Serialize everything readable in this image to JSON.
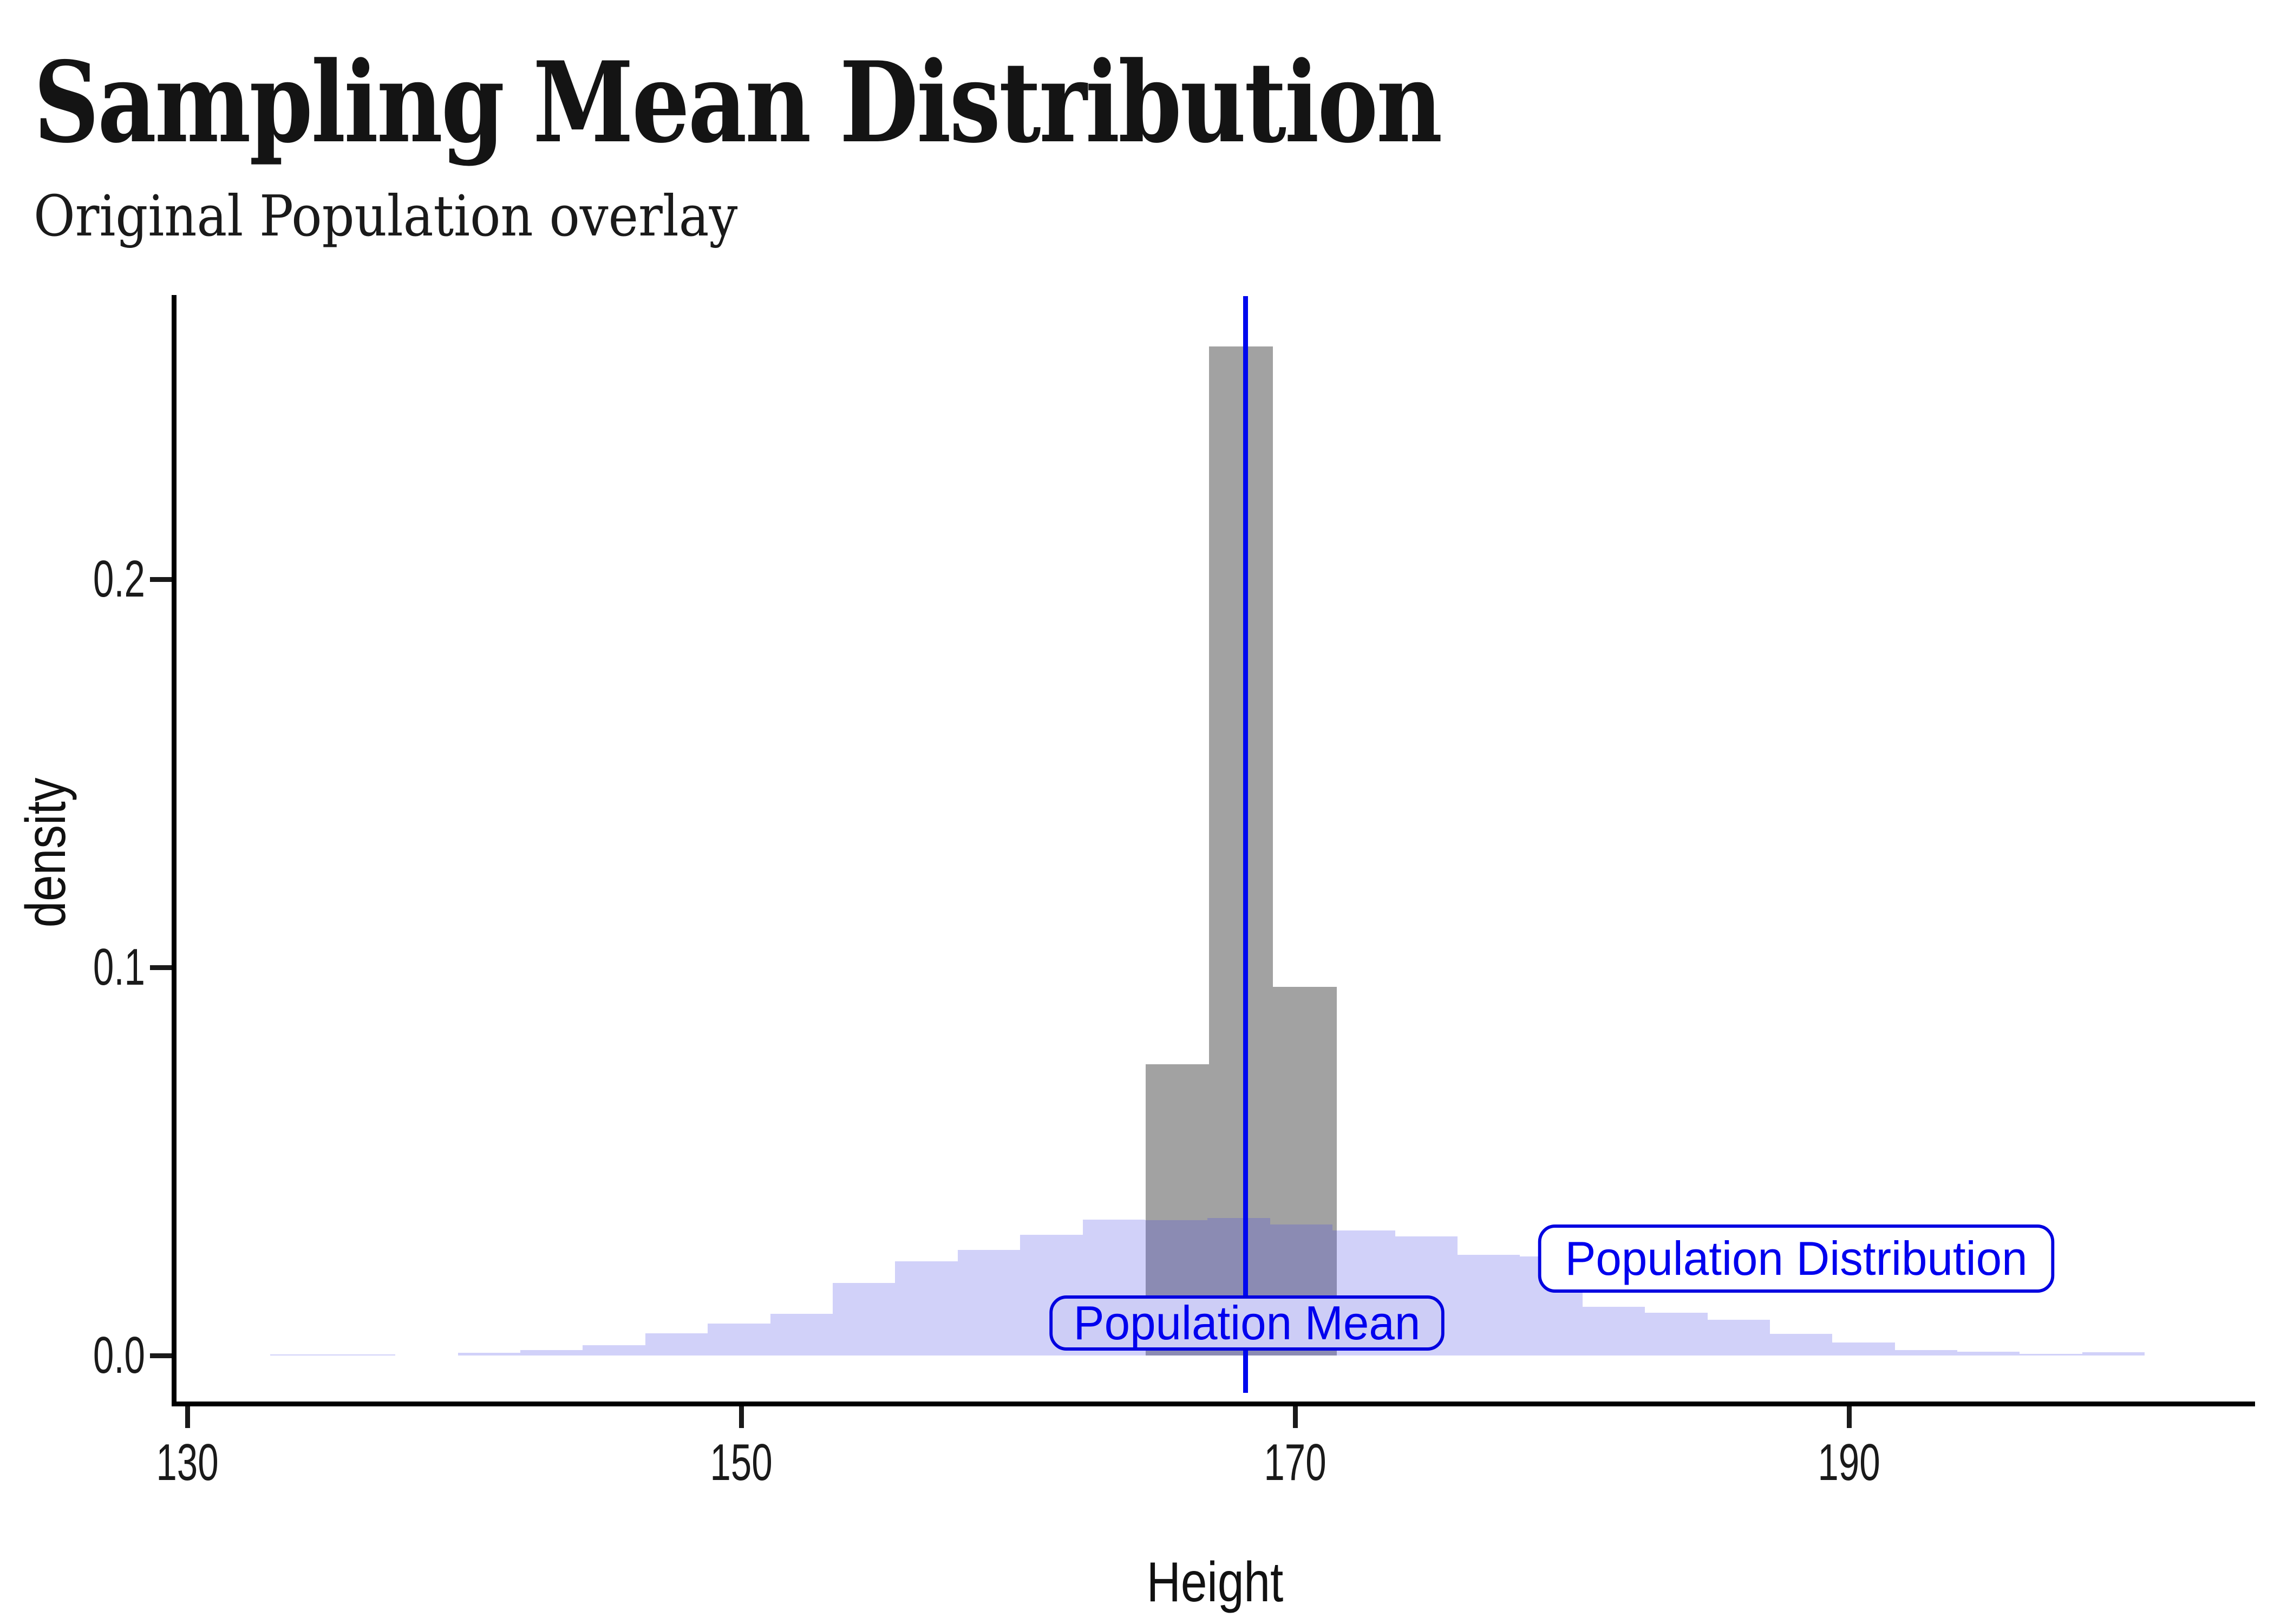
{
  "header": {
    "title": "Sampling Mean Distribution",
    "subtitle": "Original Population overlay"
  },
  "axes": {
    "x": {
      "label": "Height",
      "tick_values": [
        130,
        150,
        170,
        190
      ],
      "tick_labels": [
        "130",
        "150",
        "170",
        "190"
      ]
    },
    "y": {
      "label": "density",
      "tick_values": [
        0.0,
        0.1,
        0.2
      ],
      "tick_labels": [
        "0.0",
        "0.1",
        "0.2"
      ]
    }
  },
  "annotations": {
    "mean_label": "Population Mean",
    "dist_label": "Population Distribution"
  },
  "colors": {
    "sampling_fill": "#a2a2a2",
    "population_fill": "rgba(70,70,230,0.25)",
    "mean_line": "#0008ee",
    "annotation_border": "#0000e0",
    "annotation_text": "#0000ee",
    "mean_box_fill": "#cdcdf6",
    "dist_box_fill": "#ffffff",
    "axis_color": "#000000",
    "text_color": "#1a1a1a"
  },
  "chart_data": {
    "type": "bar",
    "subtype": "overlaid-histograms-density",
    "title": "Sampling Mean Distribution",
    "subtitle": "Original Population overlay",
    "xlabel": "Height",
    "ylabel": "density",
    "xlim": [
      129.6,
      204.6
    ],
    "ylim": [
      0,
      0.273
    ],
    "grid": false,
    "legend_position": "none",
    "series": [
      {
        "name": "Population Distribution",
        "style": "translucent-purple",
        "bin_start": 133.0,
        "bin_width": 2.256,
        "densities": [
          0.0003,
          0.0003,
          0,
          0.0007,
          0.0014,
          0.0027,
          0.0057,
          0.0082,
          0.0107,
          0.0187,
          0.0243,
          0.0272,
          0.0311,
          0.035,
          0.0349,
          0.0354,
          0.0338,
          0.0322,
          0.0307,
          0.0259,
          0.0255,
          0.0125,
          0.011,
          0.0092,
          0.0056,
          0.0033,
          0.0014,
          0.001,
          0.0004,
          0.0008
        ]
      },
      {
        "name": "Sampling Mean Distribution",
        "style": "solid-gray",
        "bin_start": 164.6,
        "bin_width": 2.3,
        "densities": [
          0.075,
          0.26,
          0.095
        ]
      }
    ],
    "vline": {
      "x": 168.2,
      "label": "Population Mean"
    }
  }
}
